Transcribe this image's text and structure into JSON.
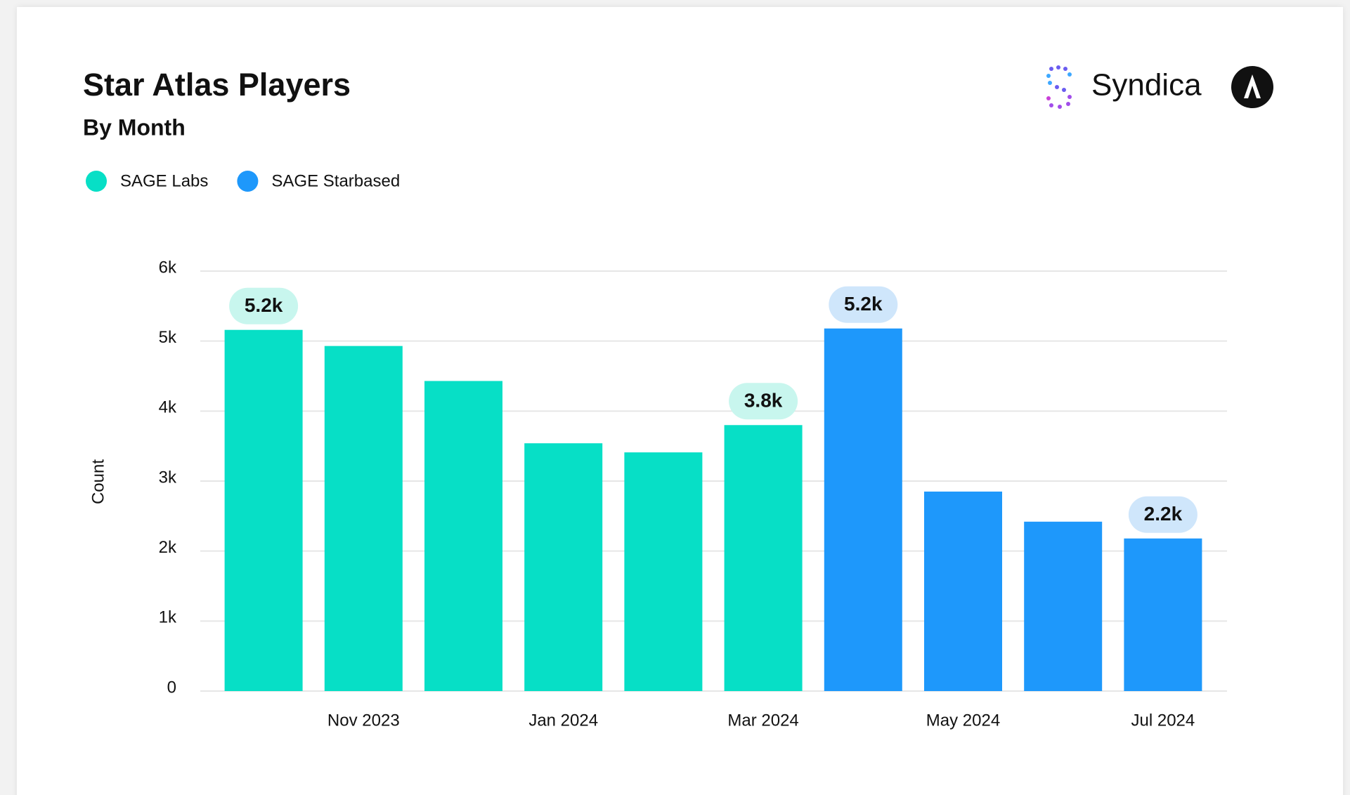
{
  "chart_data": {
    "type": "bar",
    "title": "Star Atlas Players",
    "subtitle": "By Month",
    "brand": "Syndica",
    "y_label": "Count",
    "categories": [
      null,
      "Nov 2023",
      null,
      "Jan 2024",
      null,
      "Mar 2024",
      null,
      "May 2024",
      null,
      "Jul 2024"
    ],
    "series": [
      {
        "name": "SAGE Labs",
        "color": "#07dfc6",
        "label_color": "#c8f6ee",
        "values": [
          5160,
          4930,
          4430,
          3540,
          3410,
          3800,
          null,
          null,
          null,
          null
        ],
        "value_labels": [
          "5.2k",
          null,
          null,
          null,
          null,
          "3.8k",
          null,
          null,
          null,
          null
        ]
      },
      {
        "name": "SAGE Starbased",
        "color": "#1e98fb",
        "label_color": "#cfe6fb",
        "values": [
          null,
          null,
          null,
          null,
          null,
          null,
          5180,
          2850,
          2420,
          2180
        ],
        "value_labels": [
          null,
          null,
          null,
          null,
          null,
          null,
          "5.2k",
          null,
          null,
          "2.2k"
        ]
      }
    ],
    "ylim": [
      0,
      6000
    ],
    "yticks": [
      0,
      {
        "value": 1000,
        "label": "1k"
      },
      {
        "value": 2000,
        "label": "2k"
      },
      {
        "value": 3000,
        "label": "3k"
      },
      {
        "value": 4000,
        "label": "4k"
      },
      {
        "value": 5000,
        "label": "5k"
      },
      {
        "value": 6000,
        "label": "6k"
      }
    ],
    "grid": true
  }
}
